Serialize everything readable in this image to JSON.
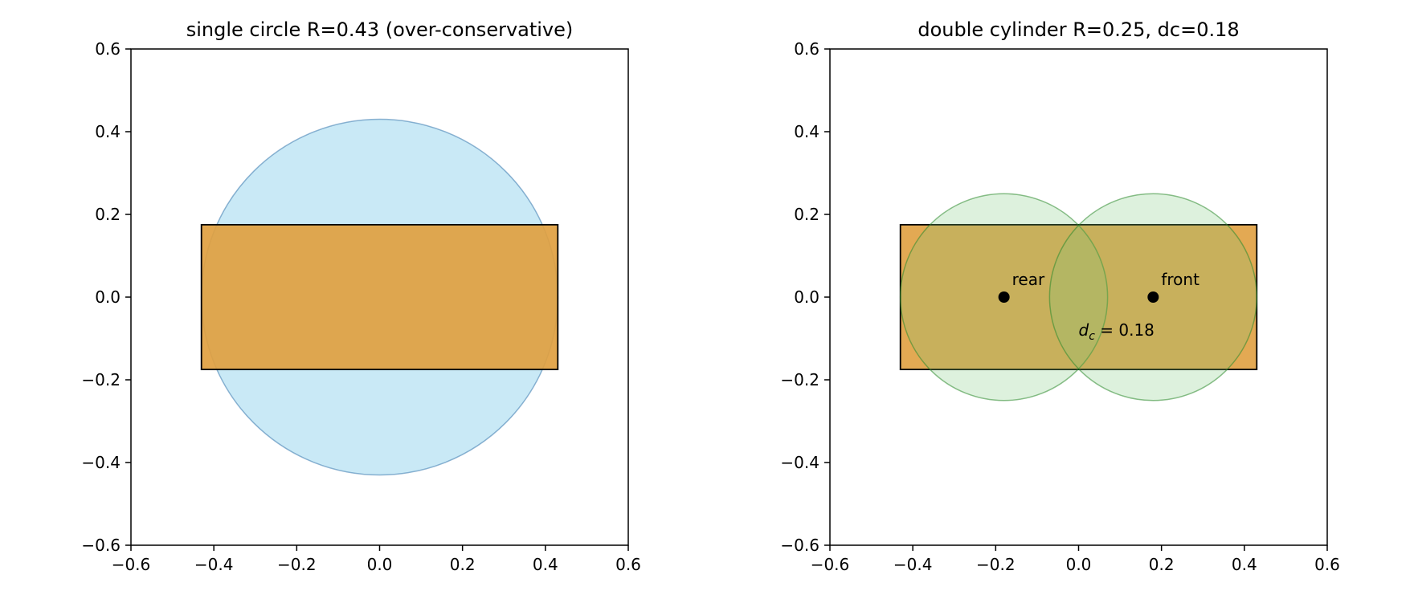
{
  "chart_data": [
    {
      "type": "diagram",
      "title": "single circle R=0.43 (over-conservative)",
      "xlim": [
        -0.6,
        0.6
      ],
      "ylim": [
        -0.6,
        0.6
      ],
      "xticks": [
        -0.6,
        -0.4,
        -0.2,
        0.0,
        0.2,
        0.4,
        0.6
      ],
      "yticks": [
        -0.6,
        -0.4,
        -0.2,
        0.0,
        0.2,
        0.4,
        0.6
      ],
      "xtick_labels": [
        "−0.6",
        "−0.4",
        "−0.2",
        "0.0",
        "0.2",
        "0.4",
        "0.6"
      ],
      "ytick_labels": [
        "−0.6",
        "−0.4",
        "−0.2",
        "0.0",
        "0.2",
        "0.4",
        "0.6"
      ],
      "grid": false,
      "rectangle": {
        "x_min": -0.43,
        "x_max": 0.43,
        "y_min": -0.175,
        "y_max": 0.175,
        "fill": "#e0a040",
        "stroke": "#000000"
      },
      "circles": [
        {
          "cx": 0.0,
          "cy": 0.0,
          "r": 0.43,
          "fill": "#87ceeb",
          "stroke": "#4682b4",
          "fill_opacity": 0.45
        }
      ],
      "points": [],
      "annotations": []
    },
    {
      "type": "diagram",
      "title": "double cylinder R=0.25, dc=0.18",
      "xlim": [
        -0.6,
        0.6
      ],
      "ylim": [
        -0.6,
        0.6
      ],
      "xticks": [
        -0.6,
        -0.4,
        -0.2,
        0.0,
        0.2,
        0.4,
        0.6
      ],
      "yticks": [
        -0.6,
        -0.4,
        -0.2,
        0.0,
        0.2,
        0.4,
        0.6
      ],
      "xtick_labels": [
        "−0.6",
        "−0.4",
        "−0.2",
        "0.0",
        "0.2",
        "0.4",
        "0.6"
      ],
      "ytick_labels": [
        "−0.6",
        "−0.4",
        "−0.2",
        "0.0",
        "0.2",
        "0.4",
        "0.6"
      ],
      "grid": false,
      "rectangle": {
        "x_min": -0.43,
        "x_max": 0.43,
        "y_min": -0.175,
        "y_max": 0.175,
        "fill": "#e0a040",
        "stroke": "#000000"
      },
      "circles": [
        {
          "cx": -0.18,
          "cy": 0.0,
          "r": 0.25,
          "fill": "#77c777",
          "stroke": "#2e8b2e",
          "fill_opacity": 0.5
        },
        {
          "cx": 0.18,
          "cy": 0.0,
          "r": 0.25,
          "fill": "#77c777",
          "stroke": "#2e8b2e",
          "fill_opacity": 0.5
        }
      ],
      "points": [
        {
          "x": -0.18,
          "y": 0.0,
          "label": "rear"
        },
        {
          "x": 0.18,
          "y": 0.0,
          "label": "front"
        }
      ],
      "annotations": [
        {
          "x": 0.0,
          "y": -0.08,
          "text_main": "d",
          "text_sub": "c",
          "text_rest": " = 0.18"
        }
      ]
    }
  ]
}
